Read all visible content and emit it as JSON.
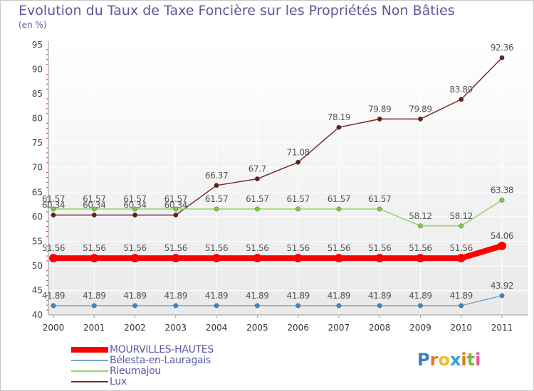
{
  "title": "Evolution du Taux de Taxe Foncière sur les Propriétés Non Bâties",
  "subtitle": "(en %)",
  "logo": {
    "letters": [
      "P",
      "r",
      "o",
      "x",
      "i",
      "t",
      "i"
    ],
    "colors": [
      "#3a7fc0",
      "#e07a1a",
      "#e8c020",
      "#2aa3d8",
      "#e07a1a",
      "#7ab640",
      "#e05a9a"
    ]
  },
  "chart_data": {
    "type": "line",
    "x": [
      2000,
      2001,
      2002,
      2003,
      2004,
      2005,
      2006,
      2007,
      2008,
      2009,
      2010,
      2011
    ],
    "ylim": [
      40,
      95
    ],
    "yticks": [
      40,
      45,
      50,
      55,
      60,
      65,
      70,
      75,
      80,
      85,
      90,
      95
    ],
    "grid": true,
    "legend_position": "bottom-left",
    "series": [
      {
        "name": "Lux",
        "color": "#7a2a2a",
        "marker_color": "#6a1a1a",
        "values": [
          60.34,
          60.34,
          60.34,
          60.34,
          66.37,
          67.7,
          71.08,
          78.19,
          79.89,
          79.89,
          83.89,
          92.36
        ],
        "labels": [
          "60.34",
          "60.34",
          "60.34",
          "60.34",
          "66.37",
          "67.7",
          "71.08",
          "78.19",
          "79.89",
          "79.89",
          "83.89",
          "92.36"
        ]
      },
      {
        "name": "Rieumajou",
        "color": "#99d36a",
        "marker_color": "#7ccb45",
        "values": [
          61.57,
          61.57,
          61.57,
          61.57,
          61.57,
          61.57,
          61.57,
          61.57,
          61.57,
          58.12,
          58.12,
          63.38
        ],
        "labels": [
          "61.57",
          "61.57",
          "61.57",
          "61.57",
          "61.57",
          "61.57",
          "61.57",
          "61.57",
          "61.57",
          "58.12",
          "58.12",
          "63.38"
        ]
      },
      {
        "name": "Bélesta-en-Lauragais",
        "color": "#7aa3c8",
        "marker_color": "#3f86c8",
        "values": [
          41.89,
          41.89,
          41.89,
          41.89,
          41.89,
          41.89,
          41.89,
          41.89,
          41.89,
          41.89,
          41.89,
          43.92
        ],
        "labels": [
          "41.89",
          "41.89",
          "41.89",
          "41.89",
          "41.89",
          "41.89",
          "41.89",
          "41.89",
          "41.89",
          "41.89",
          "41.89",
          "43.92"
        ]
      },
      {
        "name": "MOURVILLES-HAUTES",
        "color": "#ff0000",
        "marker_color": "#ff0000",
        "values": [
          51.56,
          51.56,
          51.56,
          51.56,
          51.56,
          51.56,
          51.56,
          51.56,
          51.56,
          51.56,
          51.56,
          54.06
        ],
        "labels": [
          "51.56",
          "51.56",
          "51.56",
          "51.56",
          "51.56",
          "51.56",
          "51.56",
          "51.56",
          "51.56",
          "51.56",
          "51.56",
          "54.06"
        ]
      }
    ],
    "legend": [
      "MOURVILLES-HAUTES",
      "Bélesta-en-Lauragais",
      "Rieumajou",
      "Lux"
    ]
  }
}
